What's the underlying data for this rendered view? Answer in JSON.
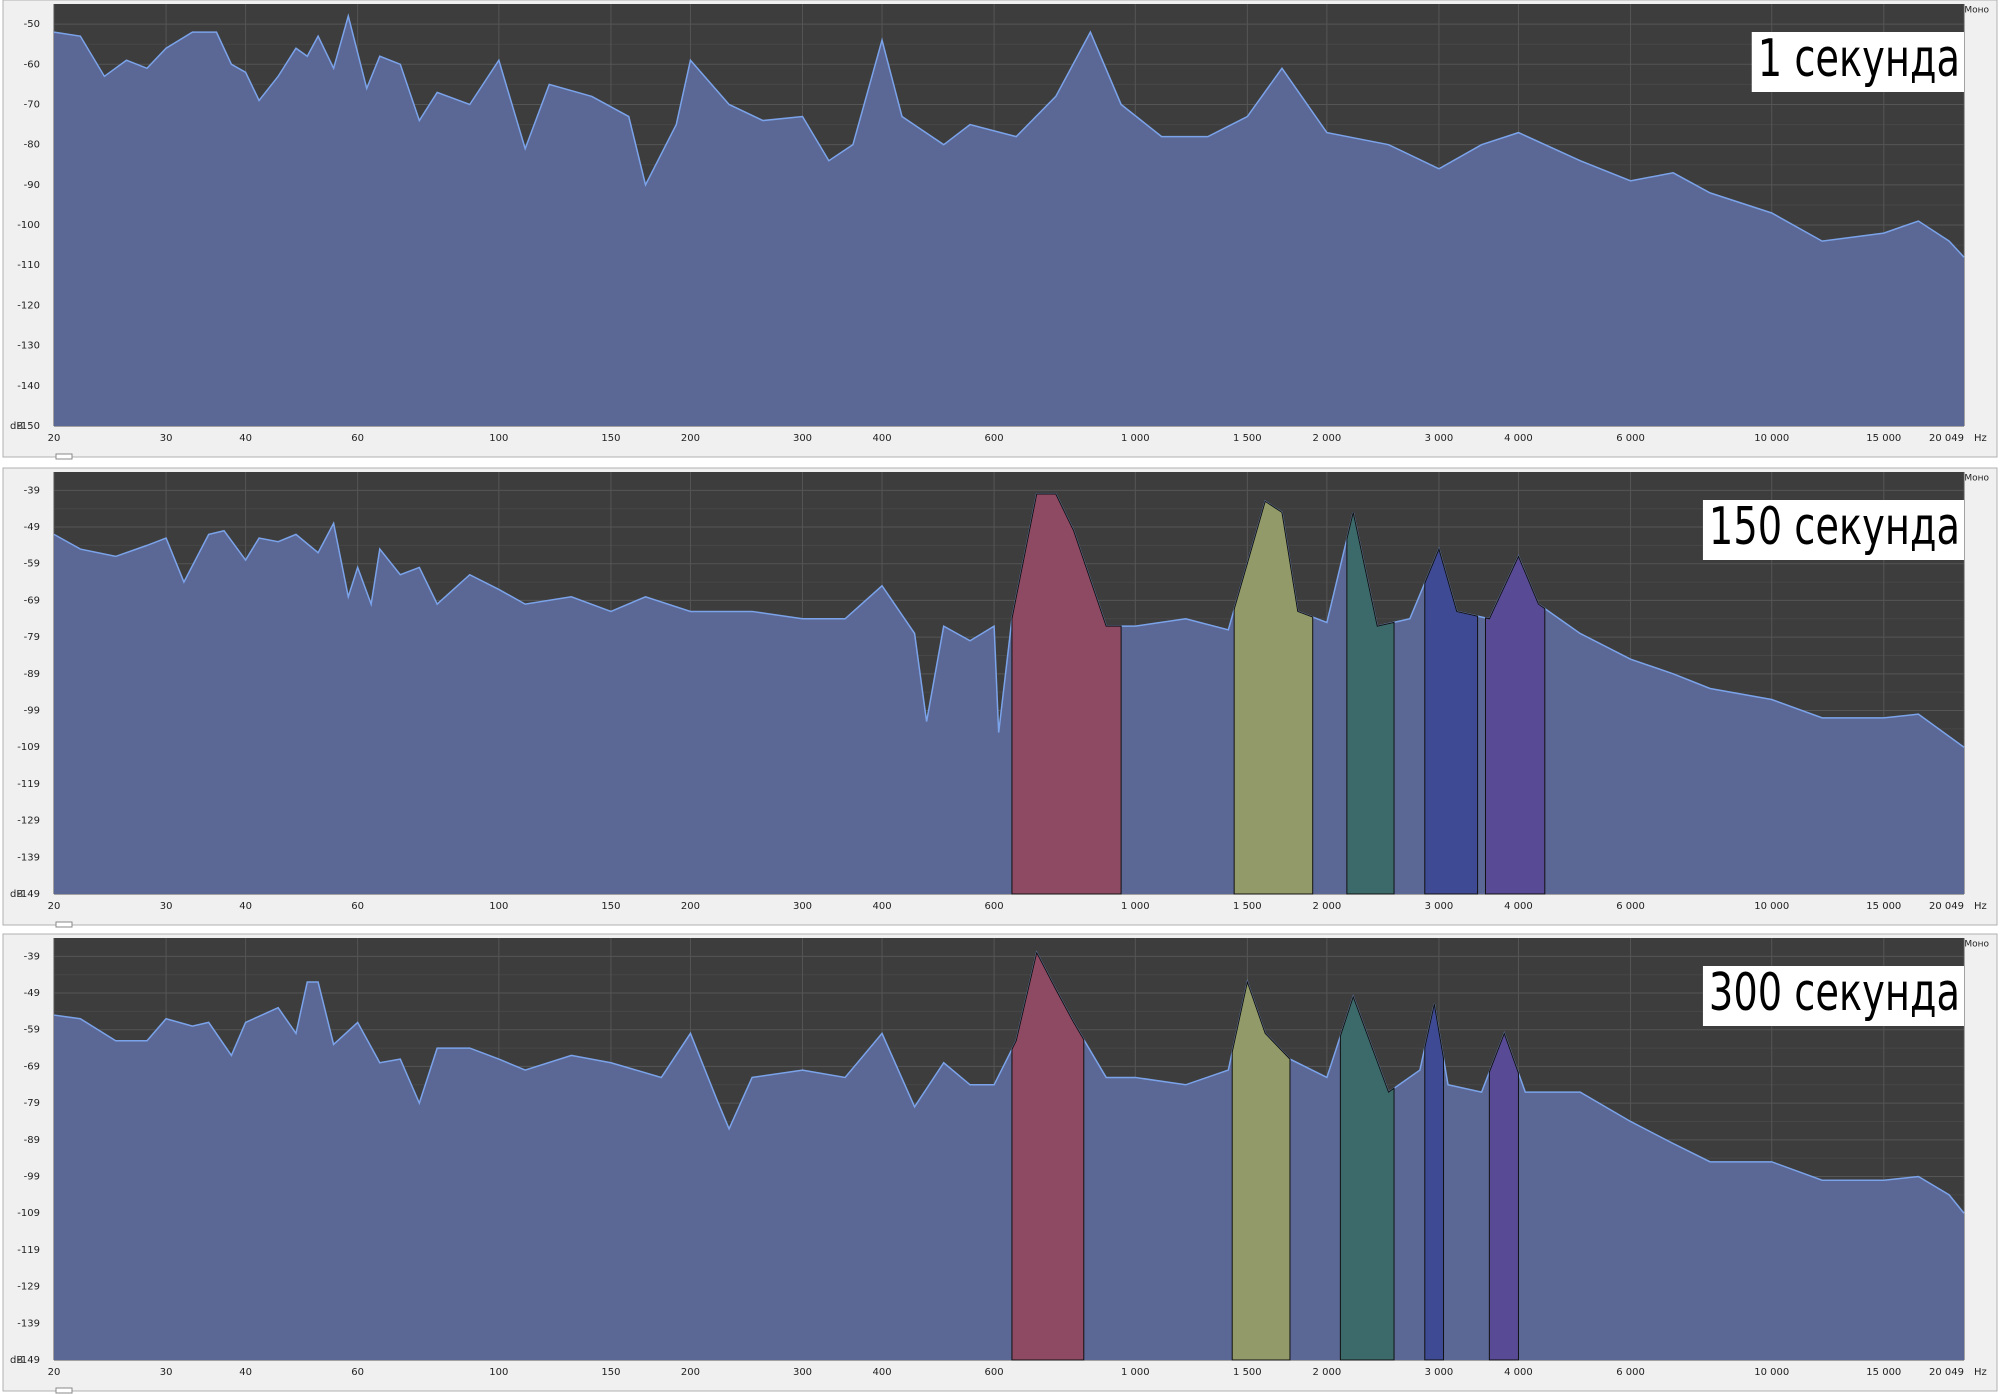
{
  "chart_data": [
    {
      "type": "area",
      "title": "1 секунда",
      "channel_label": "Моно",
      "x_unit": "Hz",
      "y_unit": "dB",
      "log_x": true,
      "grid": true,
      "color": "#7ba3ea",
      "fill": "#5b6896",
      "xlim": [
        20,
        20049
      ],
      "ylim": [
        -150,
        -45
      ],
      "xticks": [
        20,
        30,
        40,
        60,
        100,
        150,
        200,
        300,
        400,
        600,
        {
          "value": 1000,
          "label": "1 000"
        },
        {
          "value": 1500,
          "label": "1 500"
        },
        {
          "value": 2000,
          "label": "2 000"
        },
        {
          "value": 3000,
          "label": "3 000"
        },
        {
          "value": 4000,
          "label": "4 000"
        },
        {
          "value": 6000,
          "label": "6 000"
        },
        {
          "value": 10000,
          "label": "10 000"
        },
        {
          "value": 15000,
          "label": "15 000"
        },
        {
          "value": 20049,
          "label": "20 049"
        }
      ],
      "yticks": [
        -50,
        -60,
        -70,
        -80,
        -90,
        -100,
        -110,
        -120,
        -130,
        -140,
        -150
      ],
      "x": [
        20,
        22,
        24,
        26,
        28,
        30,
        33,
        36,
        38,
        40,
        42,
        45,
        48,
        50,
        52,
        55,
        58,
        62,
        65,
        70,
        75,
        80,
        90,
        100,
        110,
        120,
        140,
        160,
        170,
        190,
        200,
        230,
        260,
        300,
        330,
        360,
        400,
        430,
        500,
        550,
        650,
        750,
        850,
        950,
        1100,
        1300,
        1500,
        1700,
        2000,
        2500,
        3000,
        3500,
        4000,
        5000,
        6000,
        7000,
        8000,
        10000,
        12000,
        15000,
        17000,
        19000,
        20049
      ],
      "values": [
        -52,
        -53,
        -63,
        -59,
        -61,
        -56,
        -52,
        -52,
        -60,
        -62,
        -69,
        -63,
        -56,
        -58,
        -53,
        -61,
        -48,
        -66,
        -58,
        -60,
        -74,
        -67,
        -70,
        -59,
        -81,
        -65,
        -68,
        -73,
        -90,
        -75,
        -59,
        -70,
        -74,
        -73,
        -84,
        -80,
        -54,
        -73,
        -80,
        -75,
        -78,
        -68,
        -52,
        -70,
        -78,
        -78,
        -73,
        -61,
        -77,
        -80,
        -86,
        -80,
        -77,
        -84,
        -89,
        -87,
        -92,
        -97,
        -104,
        -102,
        -99,
        -104,
        -108
      ],
      "highlights": []
    },
    {
      "type": "area",
      "title": "150 секунда",
      "channel_label": "Моно",
      "x_unit": "Hz",
      "y_unit": "dB",
      "log_x": true,
      "grid": true,
      "color": "#7ba3ea",
      "fill": "#5b6896",
      "xlim": [
        20,
        20049
      ],
      "ylim": [
        -149,
        -34
      ],
      "xticks": [
        20,
        30,
        40,
        60,
        100,
        150,
        200,
        300,
        400,
        600,
        {
          "value": 1000,
          "label": "1 000"
        },
        {
          "value": 1500,
          "label": "1 500"
        },
        {
          "value": 2000,
          "label": "2 000"
        },
        {
          "value": 3000,
          "label": "3 000"
        },
        {
          "value": 4000,
          "label": "4 000"
        },
        {
          "value": 6000,
          "label": "6 000"
        },
        {
          "value": 10000,
          "label": "10 000"
        },
        {
          "value": 15000,
          "label": "15 000"
        },
        {
          "value": 20049,
          "label": "20 049"
        }
      ],
      "yticks": [
        -39,
        -49,
        -59,
        -69,
        -79,
        -89,
        -99,
        -109,
        -119,
        -129,
        -139,
        -149
      ],
      "x": [
        20,
        22,
        25,
        28,
        30,
        32,
        35,
        37,
        40,
        42,
        45,
        48,
        52,
        55,
        58,
        60,
        63,
        65,
        70,
        75,
        80,
        90,
        100,
        110,
        130,
        150,
        170,
        200,
        250,
        300,
        350,
        400,
        450,
        470,
        500,
        550,
        600,
        610,
        640,
        700,
        750,
        800,
        900,
        1000,
        1200,
        1400,
        1600,
        1700,
        1800,
        2000,
        2200,
        2400,
        2700,
        3000,
        3200,
        3600,
        4000,
        4300,
        5000,
        6000,
        7000,
        8000,
        10000,
        12000,
        15000,
        17000,
        20049
      ],
      "values": [
        -51,
        -55,
        -57,
        -54,
        -52,
        -64,
        -51,
        -50,
        -58,
        -52,
        -53,
        -51,
        -56,
        -48,
        -68,
        -60,
        -70,
        -55,
        -62,
        -60,
        -70,
        -62,
        -66,
        -70,
        -68,
        -72,
        -68,
        -72,
        -72,
        -74,
        -74,
        -65,
        -78,
        -102,
        -76,
        -80,
        -76,
        -105,
        -74,
        -40,
        -40,
        -50,
        -76,
        -76,
        -74,
        -77,
        -42,
        -45,
        -72,
        -75,
        -45,
        -76,
        -74,
        -55,
        -72,
        -74,
        -57,
        -70,
        -78,
        -85,
        -89,
        -93,
        -96,
        -101,
        -101,
        -100,
        -109
      ],
      "highlights": [
        {
          "xrange": [
            640,
            950
          ],
          "color": "#8e4a63"
        },
        {
          "xrange": [
            1430,
            1900
          ],
          "color": "#939a69"
        },
        {
          "xrange": [
            2150,
            2550
          ],
          "color": "#3c6a6a"
        },
        {
          "xrange": [
            2850,
            3450
          ],
          "color": "#3e4a94"
        },
        {
          "xrange": [
            3550,
            4400
          ],
          "color": "#584a94"
        }
      ]
    },
    {
      "type": "area",
      "title": "300 секунда",
      "channel_label": "Моно",
      "x_unit": "Hz",
      "y_unit": "dB",
      "log_x": true,
      "grid": true,
      "color": "#7ba3ea",
      "fill": "#5b6896",
      "xlim": [
        20,
        20049
      ],
      "ylim": [
        -149,
        -34
      ],
      "xticks": [
        20,
        30,
        40,
        60,
        100,
        150,
        200,
        300,
        400,
        600,
        {
          "value": 1000,
          "label": "1 000"
        },
        {
          "value": 1500,
          "label": "1 500"
        },
        {
          "value": 2000,
          "label": "2 000"
        },
        {
          "value": 3000,
          "label": "3 000"
        },
        {
          "value": 4000,
          "label": "4 000"
        },
        {
          "value": 6000,
          "label": "6 000"
        },
        {
          "value": 10000,
          "label": "10 000"
        },
        {
          "value": 15000,
          "label": "15 000"
        },
        {
          "value": 20049,
          "label": "20 049"
        }
      ],
      "yticks": [
        -39,
        -49,
        -59,
        -69,
        -79,
        -89,
        -99,
        -109,
        -119,
        -129,
        -139,
        -149
      ],
      "x": [
        20,
        22,
        25,
        28,
        30,
        33,
        35,
        38,
        40,
        45,
        48,
        50,
        52,
        55,
        60,
        65,
        70,
        75,
        80,
        90,
        100,
        110,
        130,
        150,
        180,
        200,
        220,
        230,
        250,
        300,
        350,
        400,
        450,
        500,
        550,
        600,
        650,
        700,
        750,
        800,
        900,
        1000,
        1200,
        1400,
        1500,
        1600,
        1750,
        2000,
        2200,
        2500,
        2800,
        2950,
        3100,
        3500,
        3800,
        4100,
        5000,
        6000,
        7000,
        8000,
        10000,
        12000,
        15000,
        17000,
        19000,
        20049
      ],
      "values": [
        -55,
        -56,
        -62,
        -62,
        -56,
        -58,
        -57,
        -66,
        -57,
        -53,
        -60,
        -46,
        -46,
        -63,
        -57,
        -68,
        -67,
        -79,
        -64,
        -64,
        -67,
        -70,
        -66,
        -68,
        -72,
        -60,
        -78,
        -86,
        -72,
        -70,
        -72,
        -60,
        -80,
        -68,
        -74,
        -74,
        -62,
        -38,
        -48,
        -57,
        -72,
        -72,
        -74,
        -70,
        -46,
        -60,
        -67,
        -72,
        -50,
        -76,
        -70,
        -52,
        -74,
        -76,
        -60,
        -76,
        -76,
        -84,
        -90,
        -95,
        -95,
        -100,
        -100,
        -99,
        -104,
        -109
      ],
      "highlights": [
        {
          "xrange": [
            640,
            830
          ],
          "color": "#8e4a63"
        },
        {
          "xrange": [
            1420,
            1750
          ],
          "color": "#939a69"
        },
        {
          "xrange": [
            2100,
            2550
          ],
          "color": "#3c6a6a"
        },
        {
          "xrange": [
            2850,
            3050
          ],
          "color": "#3e4a94"
        },
        {
          "xrange": [
            3600,
            4000
          ],
          "color": "#584a94"
        }
      ]
    }
  ]
}
